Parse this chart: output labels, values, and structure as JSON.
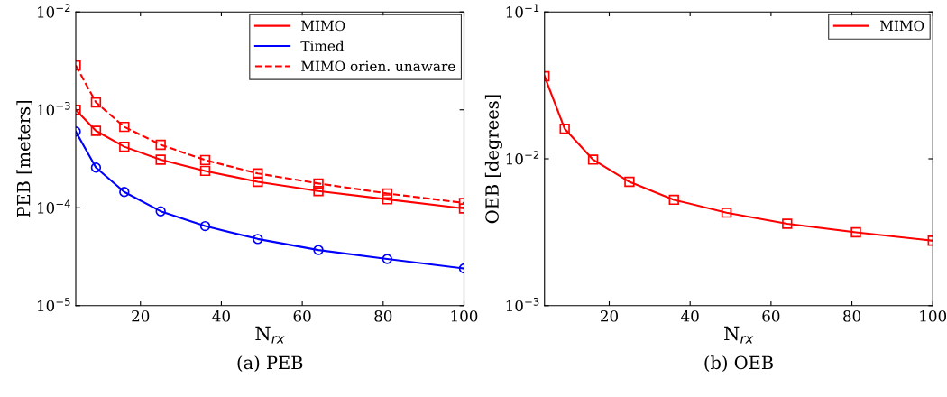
{
  "chart_data": [
    {
      "type": "line",
      "title": "(a) PEB",
      "xlabel": "N$_{rx}$",
      "ylabel": "PEB [meters]",
      "log": "y",
      "grid": false,
      "legend": "top right",
      "x": [
        4,
        9,
        16,
        25,
        36,
        49,
        64,
        81,
        100
      ],
      "xlim": [
        4,
        100
      ],
      "xticks": [
        20,
        40,
        60,
        80,
        100
      ],
      "ylim": [
        1e-05,
        0.01
      ],
      "yticks": [
        {
          "value": 1e-05,
          "label": "10$^{−5}$"
        },
        {
          "value": 0.0001,
          "label": "10$^{−4}$"
        },
        {
          "value": 0.001,
          "label": "10$^{−3}$"
        },
        {
          "value": 0.01,
          "label": "10$^{−2}$"
        }
      ],
      "series": [
        {
          "name": "MIMO",
          "color": "#ff0000",
          "marker": "square",
          "line_style": "solid",
          "values": [
            0.001,
            0.00061,
            0.00042,
            0.00031,
            0.000238,
            0.000184,
            0.000148,
            0.000122,
            9.85e-05
          ]
        },
        {
          "name": "Timed",
          "color": "#0000ff",
          "marker": "circle",
          "line_style": "solid",
          "values": [
            0.0006,
            0.000257,
            0.000145,
            9.2e-05,
            6.5e-05,
            4.8e-05,
            3.7e-05,
            3e-05,
            2.4e-05
          ]
        },
        {
          "name": "MIMO orien. unaware",
          "color": "#ff0000",
          "marker": "square",
          "line_style": "dashed",
          "values": [
            0.00284,
            0.00119,
            0.00067,
            0.00044,
            0.000307,
            0.000224,
            0.000177,
            0.00014,
            0.000112
          ]
        }
      ]
    },
    {
      "type": "line",
      "title": "(b) OEB",
      "xlabel": "N$_{rx}$",
      "ylabel": "OEB [degrees]",
      "log": "y",
      "grid": false,
      "legend": "top right",
      "x": [
        4,
        9,
        16,
        25,
        36,
        49,
        64,
        81,
        100
      ],
      "xlim": [
        4,
        100
      ],
      "xticks": [
        20,
        40,
        60,
        80,
        100
      ],
      "ylim": [
        0.001,
        0.1
      ],
      "yticks": [
        {
          "value": 0.001,
          "label": "10$^{−3}$"
        },
        {
          "value": 0.01,
          "label": "10$^{−2}$"
        },
        {
          "value": 0.1,
          "label": "10$^{−1}$"
        }
      ],
      "series": [
        {
          "name": "MIMO",
          "color": "#ff0000",
          "marker": "square",
          "line_style": "solid",
          "values": [
            0.0365,
            0.016,
            0.00987,
            0.00697,
            0.00526,
            0.0043,
            0.00361,
            0.00316,
            0.00277
          ]
        }
      ]
    }
  ]
}
